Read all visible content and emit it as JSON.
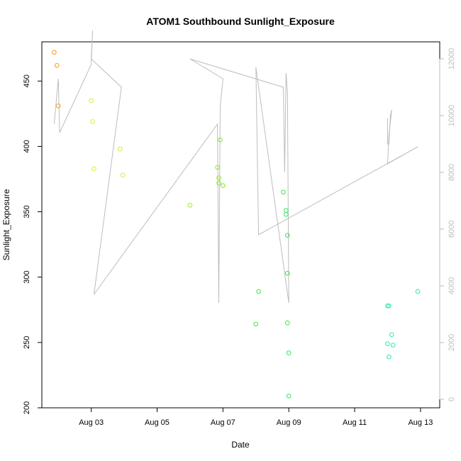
{
  "chart_data": {
    "type": "scatter",
    "title": "ATOM1 Southbound Sunlight_Exposure",
    "xlabel": "Date",
    "ylabel": "Sunlight_Exposure",
    "xlim": [
      "2023-08-01T12:00",
      "2023-08-13T14:00"
    ],
    "ylim": [
      200,
      480
    ],
    "x_ticks": [
      {
        "value": "2023-08-03T00:00",
        "label": "Aug 03"
      },
      {
        "value": "2023-08-05T00:00",
        "label": "Aug 05"
      },
      {
        "value": "2023-08-07T00:00",
        "label": "Aug 07"
      },
      {
        "value": "2023-08-09T00:00",
        "label": "Aug 09"
      },
      {
        "value": "2023-08-11T00:00",
        "label": "Aug 11"
      },
      {
        "value": "2023-08-13T00:00",
        "label": "Aug 13"
      }
    ],
    "y_ticks": [
      200,
      250,
      300,
      350,
      400,
      450
    ],
    "secondary_axis": {
      "position": "right",
      "color": "#bdbdbd",
      "ylim": [
        -300,
        12600
      ],
      "ticks": [
        0,
        2000,
        4000,
        6000,
        8000,
        10000,
        12000
      ]
    },
    "points": [
      {
        "x": "2023-08-01T21:00",
        "y": 472,
        "color": "#f39b1c"
      },
      {
        "x": "2023-08-01T23:00",
        "y": 462,
        "color": "#f39b1c"
      },
      {
        "x": "2023-08-02T00:00",
        "y": 431,
        "color": "#f5a623"
      },
      {
        "x": "2023-08-03T00:00",
        "y": 435,
        "color": "#ddee33"
      },
      {
        "x": "2023-08-03T01:00",
        "y": 419,
        "color": "#ddee33"
      },
      {
        "x": "2023-08-03T02:00",
        "y": 383,
        "color": "#ddee33"
      },
      {
        "x": "2023-08-03T21:00",
        "y": 398,
        "color": "#d6ee2e"
      },
      {
        "x": "2023-08-03T23:00",
        "y": 378,
        "color": "#d6ee2e"
      },
      {
        "x": "2023-08-06T00:00",
        "y": 355,
        "color": "#a6e82a"
      },
      {
        "x": "2023-08-06T20:00",
        "y": 384,
        "color": "#8ee82a"
      },
      {
        "x": "2023-08-06T21:00",
        "y": 376,
        "color": "#8ee82a"
      },
      {
        "x": "2023-08-06T21:00",
        "y": 372,
        "color": "#8ee82a"
      },
      {
        "x": "2023-08-06T22:00",
        "y": 405,
        "color": "#7ee62a"
      },
      {
        "x": "2023-08-07T00:00",
        "y": 370,
        "color": "#7ee62a"
      },
      {
        "x": "2023-08-08T00:00",
        "y": 264,
        "color": "#3ee84a"
      },
      {
        "x": "2023-08-08T02:00",
        "y": 289,
        "color": "#3ee84a"
      },
      {
        "x": "2023-08-08T20:00",
        "y": 365,
        "color": "#2ee85a"
      },
      {
        "x": "2023-08-08T22:00",
        "y": 351,
        "color": "#2ee85a"
      },
      {
        "x": "2023-08-08T22:00",
        "y": 348,
        "color": "#2ee85a"
      },
      {
        "x": "2023-08-08T23:00",
        "y": 332,
        "color": "#2ee85a"
      },
      {
        "x": "2023-08-08T23:00",
        "y": 303,
        "color": "#2ee85a"
      },
      {
        "x": "2023-08-08T23:00",
        "y": 265,
        "color": "#2ee85a"
      },
      {
        "x": "2023-08-09T00:00",
        "y": 242,
        "color": "#2ee85a"
      },
      {
        "x": "2023-08-09T00:00",
        "y": 209,
        "color": "#2ee85a"
      },
      {
        "x": "2023-08-12T00:00",
        "y": 278,
        "color": "#2ee8b2"
      },
      {
        "x": "2023-08-12T00:00",
        "y": 249,
        "color": "#2ee8b2"
      },
      {
        "x": "2023-08-12T01:00",
        "y": 278,
        "color": "#2ee8b2"
      },
      {
        "x": "2023-08-12T01:00",
        "y": 239,
        "color": "#2ee8b2"
      },
      {
        "x": "2023-08-12T03:00",
        "y": 256,
        "color": "#2ee8b2"
      },
      {
        "x": "2023-08-12T04:00",
        "y": 248,
        "color": "#2ee8b2"
      },
      {
        "x": "2023-08-12T22:00",
        "y": 289,
        "color": "#2ee8b2"
      }
    ],
    "secondary_line": {
      "color": "#bdbdbd",
      "points": [
        {
          "x": "2023-08-01T21:00",
          "y": 9700
        },
        {
          "x": "2023-08-02T00:00",
          "y": 11300
        },
        {
          "x": "2023-08-02T01:00",
          "y": 9400
        },
        {
          "x": "2023-08-03T00:00",
          "y": 11800
        },
        {
          "x": "2023-08-03T01:00",
          "y": 13000
        },
        {
          "x": "2023-08-03T00:00",
          "y": 12000
        },
        {
          "x": "2023-08-03T22:00",
          "y": 11000
        },
        {
          "x": "2023-08-03T02:00",
          "y": 3700
        },
        {
          "x": "2023-08-06T20:00",
          "y": 9700
        },
        {
          "x": "2023-08-06T21:00",
          "y": 3400
        },
        {
          "x": "2023-08-06T22:00",
          "y": 10300
        },
        {
          "x": "2023-08-07T00:00",
          "y": 11300
        },
        {
          "x": "2023-08-06T00:00",
          "y": 12000
        },
        {
          "x": "2023-08-08T20:00",
          "y": 11000
        },
        {
          "x": "2023-08-08T21:00",
          "y": 8000
        },
        {
          "x": "2023-08-08T22:00",
          "y": 11500
        },
        {
          "x": "2023-08-08T23:00",
          "y": 10800
        },
        {
          "x": "2023-08-09T00:00",
          "y": 3400
        },
        {
          "x": "2023-08-08T00:00",
          "y": 11700
        },
        {
          "x": "2023-08-08T02:00",
          "y": 5800
        },
        {
          "x": "2023-08-12T22:00",
          "y": 8900
        },
        {
          "x": "2023-08-12T00:00",
          "y": 8300
        },
        {
          "x": "2023-08-12T01:00",
          "y": 9300
        },
        {
          "x": "2023-08-12T03:00",
          "y": 10200
        },
        {
          "x": "2023-08-12T02:00",
          "y": 10000
        },
        {
          "x": "2023-08-12T01:00",
          "y": 9000
        },
        {
          "x": "2023-08-12T00:00",
          "y": 9000
        },
        {
          "x": "2023-08-12T00:00",
          "y": 9900
        }
      ]
    },
    "grid": false,
    "legend": "none"
  }
}
